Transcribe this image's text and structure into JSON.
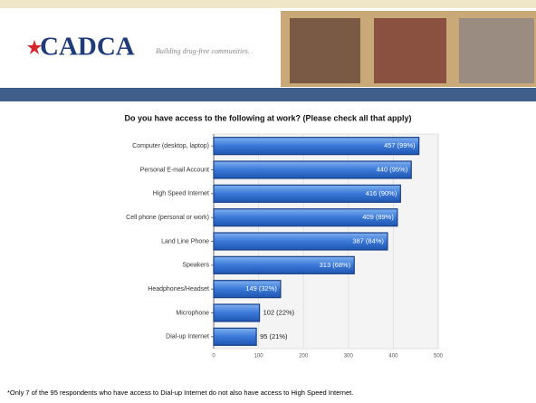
{
  "header": {
    "logo": "CADCA",
    "tagline": "Building drug-free communities."
  },
  "chart_data": {
    "type": "barh",
    "title": "Do you have access to the following at work? (Please check all that apply)",
    "categories": [
      "Computer (desktop, laptop)",
      "Personal E-mail Account",
      "High Speed Internet",
      "Cell phone (personal or work)",
      "Land Line Phone",
      "Speakers",
      "Headphones/Headset",
      "Microphone",
      "Dial-up Internet"
    ],
    "values": [
      457,
      440,
      416,
      409,
      387,
      313,
      149,
      102,
      95
    ],
    "value_labels": [
      "457 (99%)",
      "440 (95%)",
      "416 (90%)",
      "409 (89%)",
      "387 (84%)",
      "313 (68%)",
      "149 (32%)",
      "102 (22%)",
      "95 (21%)"
    ],
    "color": "#3a78d8",
    "xlim": [
      0,
      500
    ],
    "xticks": [
      0,
      100,
      200,
      300,
      400,
      500
    ],
    "grid": true
  },
  "footnote": "*Only 7 of the 95 respondents who have access to Dial-up Internet do not also have access to High Speed Internet."
}
